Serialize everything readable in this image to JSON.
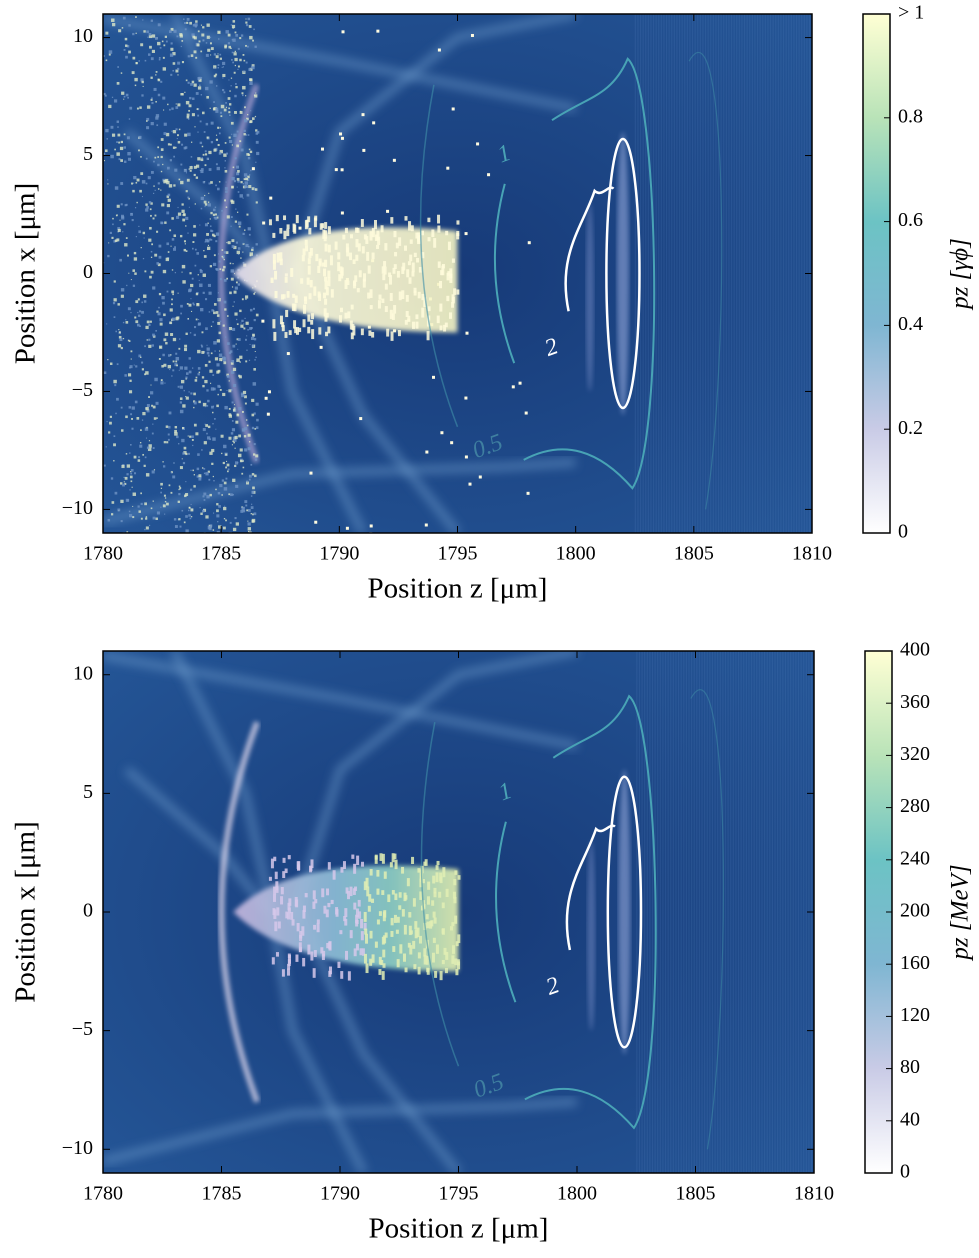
{
  "chart_data": [
    {
      "type": "heatmap",
      "xlabel": "Position z [μm]",
      "ylabel": "Position x [μm]",
      "xlim": [
        1780,
        1810
      ],
      "xticks": [
        1780,
        1785,
        1790,
        1795,
        1800,
        1805,
        1810
      ],
      "ylim": [
        -11,
        11
      ],
      "yticks": [
        {
          "value": -10,
          "label": "−10"
        },
        {
          "value": -5,
          "label": "−5"
        },
        0,
        5,
        10
      ],
      "colorbar": {
        "label": "pz [γϕ]",
        "lim": [
          0,
          1
        ],
        "ticks": [
          0,
          0.2,
          0.4,
          0.6,
          0.8,
          {
            "value": 1,
            "label": "> 1"
          }
        ]
      },
      "contour_labels": [
        "1",
        "2",
        "0.5"
      ]
    },
    {
      "type": "heatmap",
      "xlabel": "Position z [μm]",
      "ylabel": "Position x [μm]",
      "xlim": [
        1780,
        1810
      ],
      "xticks": [
        1780,
        1785,
        1790,
        1795,
        1800,
        1805,
        1810
      ],
      "ylim": [
        -11,
        11
      ],
      "yticks": [
        {
          "value": -10,
          "label": "−10"
        },
        {
          "value": -5,
          "label": "−5"
        },
        0,
        5,
        10
      ],
      "colorbar": {
        "label": "pz [MeV]",
        "lim": [
          0,
          400
        ],
        "ticks": [
          0,
          40,
          80,
          120,
          160,
          200,
          240,
          280,
          320,
          360,
          400
        ]
      },
      "contour_labels": [
        "1",
        "2",
        "0.5"
      ]
    }
  ]
}
